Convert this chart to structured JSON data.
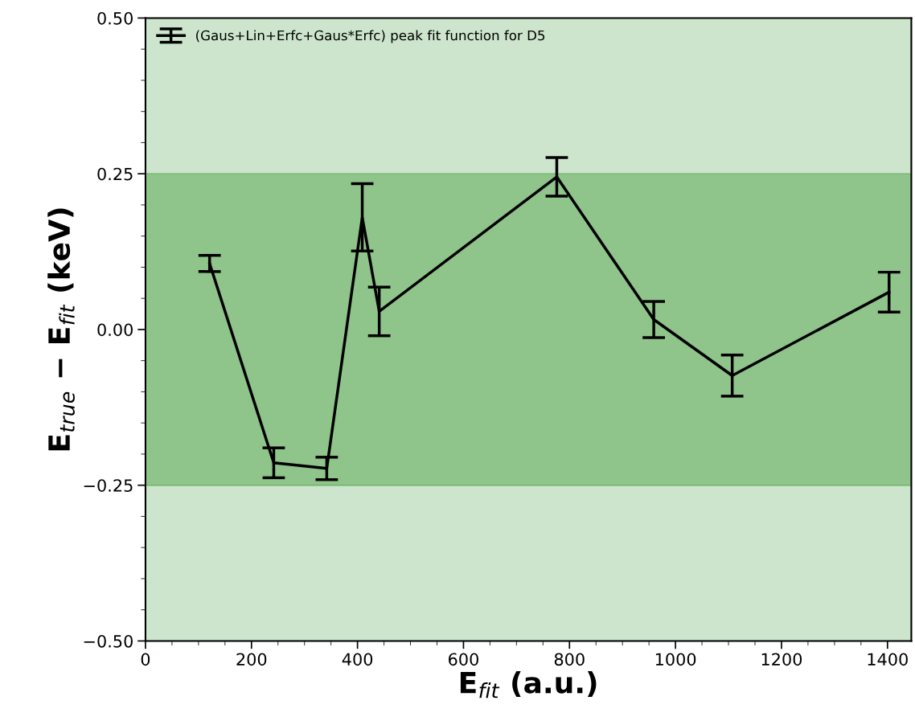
{
  "chart_data": {
    "type": "line",
    "xlabel": "E$_{fit}$ (a.u.)",
    "ylabel": "E$_{true}$ − E$_{fit}$ (keV)",
    "x": [
      121,
      242,
      342,
      409,
      441,
      776,
      959,
      1107,
      1403
    ],
    "series": [
      {
        "name": "(Gaus+Lin+Erfc+Gaus*Erfc) peak fit function for D5",
        "color": "#000000",
        "values": [
          0.106,
          -0.214,
          -0.223,
          0.18,
          0.029,
          0.245,
          0.016,
          -0.074,
          0.06
        ],
        "errors": [
          0.013,
          0.024,
          0.018,
          0.054,
          0.039,
          0.031,
          0.029,
          0.033,
          0.032
        ]
      }
    ],
    "xlim": [
      0,
      1445
    ],
    "xticks": [
      0,
      200,
      400,
      600,
      800,
      1000,
      1200,
      1400
    ],
    "ylim": [
      -0.5,
      0.5
    ],
    "yticks": [
      {
        "value": -0.5,
        "label": "−0.50"
      },
      {
        "value": -0.25,
        "label": "−0.25"
      },
      {
        "value": 0,
        "label": "0.00"
      },
      {
        "value": 0.25,
        "label": "0.25"
      },
      {
        "value": 0.5,
        "label": "0.50"
      }
    ],
    "bands": [
      {
        "axis": "y",
        "from": -0.5,
        "to": 0.5,
        "color": "#cce5cc"
      },
      {
        "axis": "y",
        "from": -0.25,
        "to": 0.25,
        "color": "#8fc48a"
      }
    ],
    "legend": "top left",
    "marker": "none",
    "line_style": "solid",
    "grid": false
  }
}
